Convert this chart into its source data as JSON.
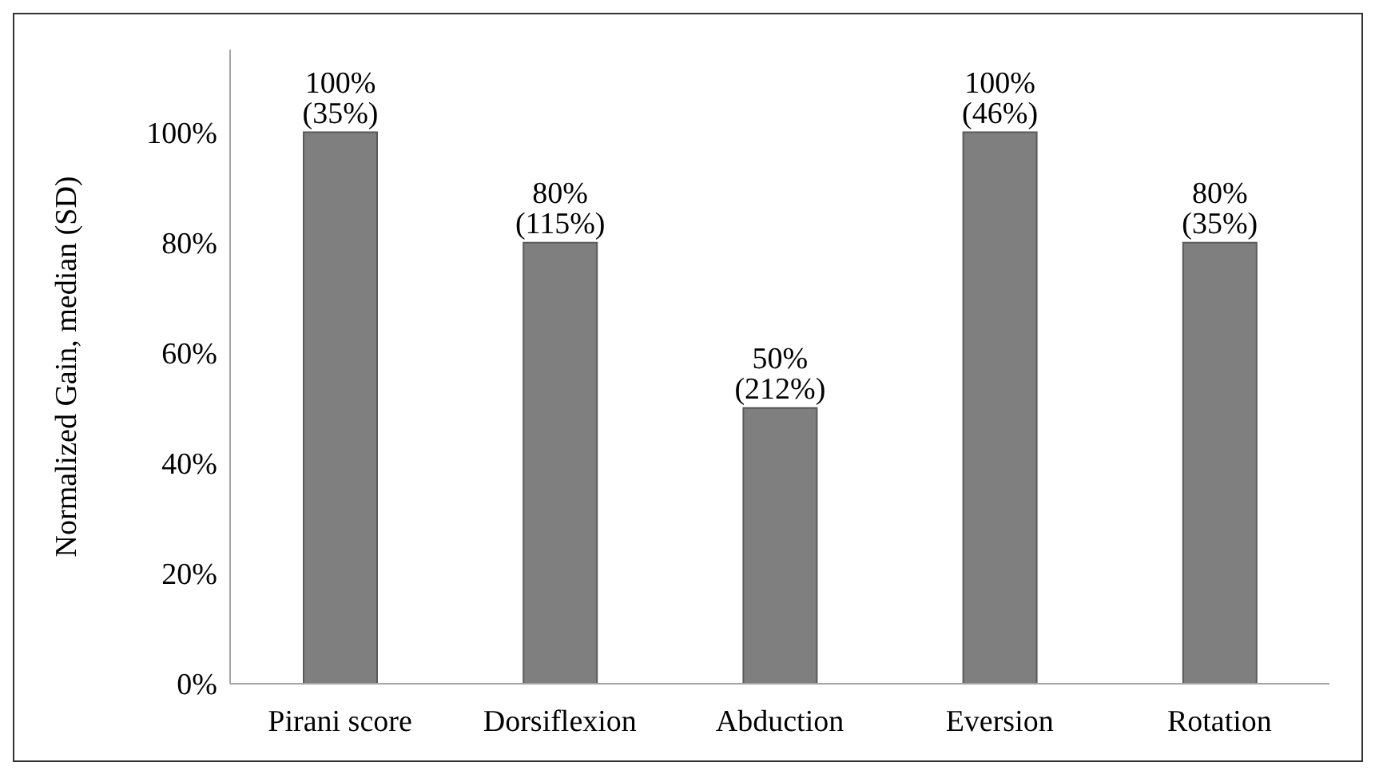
{
  "chart_data": {
    "type": "bar",
    "ylabel": "Normalized Gain, median (SD)",
    "categories": [
      "Pirani score",
      "Dorsiflexion",
      "Abduction",
      "Eversion",
      "Rotation"
    ],
    "values": [
      100,
      80,
      50,
      100,
      80
    ],
    "value_labels": [
      "100% (35%)",
      "80% (115%)",
      "50% (212%)",
      "100% (46%)",
      "80% (35%)"
    ],
    "color": "#7f7f7f",
    "ylim": [
      0,
      115
    ],
    "yticks": [
      {
        "value": 0,
        "label": "0%"
      },
      {
        "value": 20,
        "label": "20%"
      },
      {
        "value": 40,
        "label": "40%"
      },
      {
        "value": 60,
        "label": "60%"
      },
      {
        "value": 80,
        "label": "80%"
      },
      {
        "value": 100,
        "label": "100%"
      }
    ],
    "grid": false,
    "legend": false
  }
}
